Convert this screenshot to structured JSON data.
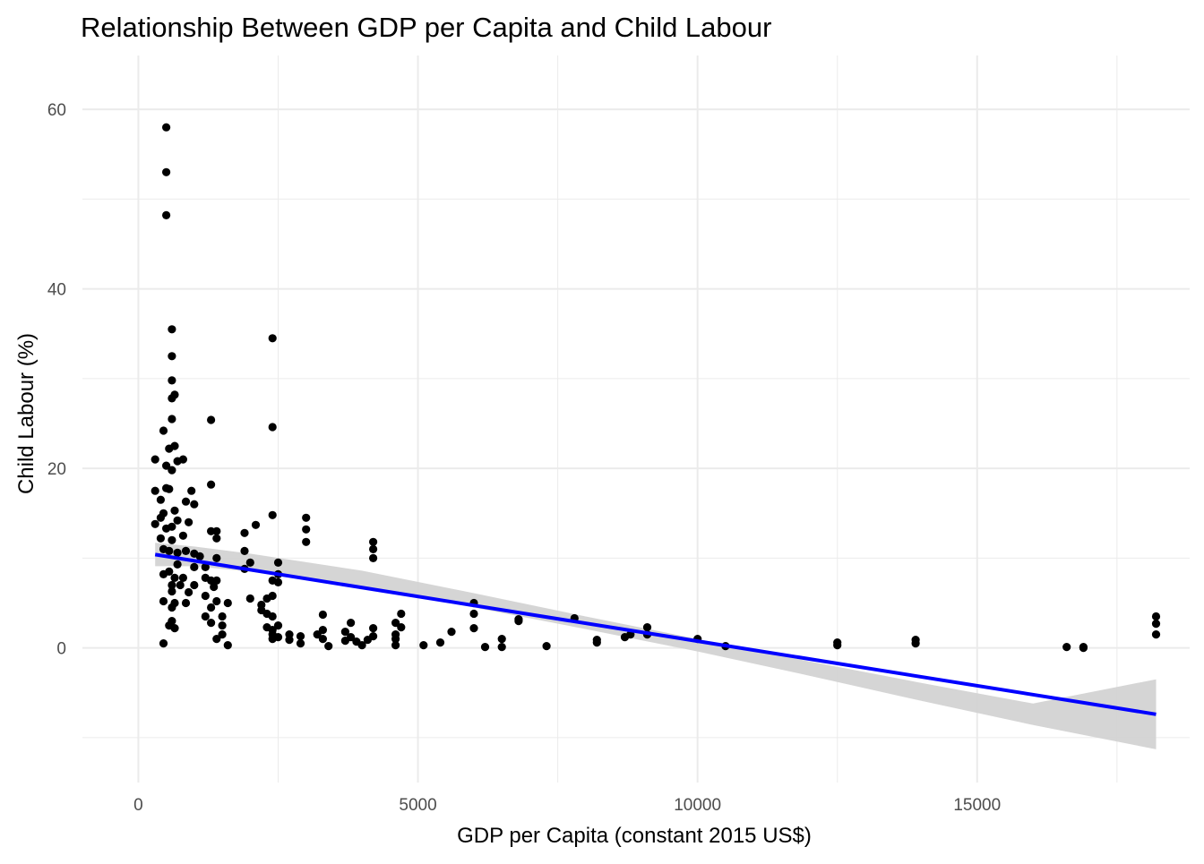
{
  "chart_data": {
    "type": "scatter",
    "title": "Relationship Between GDP per Capita and Child Labour",
    "xlabel": "GDP per Capita (constant 2015 US$)",
    "ylabel": "Child Labour (%)",
    "xlim": [
      -1000,
      18800
    ],
    "ylim": [
      -15,
      66
    ],
    "x_ticks": [
      0,
      5000,
      10000,
      15000
    ],
    "y_ticks": [
      0,
      20,
      40,
      60
    ],
    "grid": true,
    "legend": "none",
    "colors": {
      "points": "#000000",
      "trend_line": "#0000ff",
      "confidence_band": "#d3d3d3",
      "grid": "#ebebeb",
      "text": "#000000",
      "tick_text": "#4d4d4d"
    },
    "series": [
      {
        "type": "points",
        "points": [
          [
            500,
            58.0
          ],
          [
            500,
            53.0
          ],
          [
            500,
            48.2
          ],
          [
            600,
            35.5
          ],
          [
            600,
            32.5
          ],
          [
            600,
            29.8
          ],
          [
            600,
            27.8
          ],
          [
            650,
            28.2
          ],
          [
            600,
            25.5
          ],
          [
            2400,
            34.5
          ],
          [
            1300,
            25.4
          ],
          [
            2400,
            24.6
          ],
          [
            450,
            24.2
          ],
          [
            300,
            21.0
          ],
          [
            650,
            22.5
          ],
          [
            550,
            22.2
          ],
          [
            800,
            21.0
          ],
          [
            500,
            20.3
          ],
          [
            700,
            20.8
          ],
          [
            600,
            19.8
          ],
          [
            300,
            17.5
          ],
          [
            500,
            17.8
          ],
          [
            550,
            17.7
          ],
          [
            400,
            16.5
          ],
          [
            950,
            17.5
          ],
          [
            850,
            16.3
          ],
          [
            1000,
            16.0
          ],
          [
            450,
            15.0
          ],
          [
            650,
            15.3
          ],
          [
            400,
            14.5
          ],
          [
            300,
            13.8
          ],
          [
            900,
            14.0
          ],
          [
            700,
            14.2
          ],
          [
            500,
            13.3
          ],
          [
            600,
            13.5
          ],
          [
            1300,
            18.2
          ],
          [
            2400,
            14.8
          ],
          [
            3000,
            14.5
          ],
          [
            3000,
            13.2
          ],
          [
            2100,
            13.7
          ],
          [
            1900,
            12.8
          ],
          [
            1300,
            13.0
          ],
          [
            1400,
            13.0
          ],
          [
            1400,
            12.2
          ],
          [
            3000,
            11.8
          ],
          [
            4200,
            11.8
          ],
          [
            4200,
            11.0
          ],
          [
            4200,
            10.0
          ],
          [
            1900,
            10.8
          ],
          [
            800,
            12.5
          ],
          [
            600,
            12.0
          ],
          [
            400,
            12.2
          ],
          [
            450,
            11.0
          ],
          [
            550,
            10.8
          ],
          [
            700,
            10.6
          ],
          [
            850,
            10.8
          ],
          [
            1000,
            10.5
          ],
          [
            1100,
            10.2
          ],
          [
            1400,
            10.0
          ],
          [
            2000,
            9.5
          ],
          [
            2500,
            9.5
          ],
          [
            700,
            9.3
          ],
          [
            1000,
            9.0
          ],
          [
            1200,
            9.0
          ],
          [
            1900,
            8.8
          ],
          [
            2500,
            8.2
          ],
          [
            550,
            8.5
          ],
          [
            450,
            8.2
          ],
          [
            650,
            7.8
          ],
          [
            800,
            7.8
          ],
          [
            1200,
            7.8
          ],
          [
            1400,
            7.5
          ],
          [
            2400,
            7.5
          ],
          [
            2500,
            7.3
          ],
          [
            600,
            7.0
          ],
          [
            750,
            7.0
          ],
          [
            1000,
            7.0
          ],
          [
            1300,
            7.5
          ],
          [
            1350,
            6.8
          ],
          [
            600,
            6.3
          ],
          [
            900,
            6.2
          ],
          [
            1200,
            5.8
          ],
          [
            2400,
            5.8
          ],
          [
            2300,
            5.5
          ],
          [
            2000,
            5.5
          ],
          [
            450,
            5.2
          ],
          [
            650,
            5.0
          ],
          [
            850,
            5.0
          ],
          [
            1400,
            5.2
          ],
          [
            1600,
            5.0
          ],
          [
            2200,
            4.8
          ],
          [
            600,
            4.5
          ],
          [
            1300,
            4.5
          ],
          [
            2200,
            4.2
          ],
          [
            2300,
            3.8
          ],
          [
            1200,
            3.5
          ],
          [
            1500,
            3.5
          ],
          [
            2400,
            3.5
          ],
          [
            3300,
            3.7
          ],
          [
            4700,
            3.8
          ],
          [
            6000,
            5.0
          ],
          [
            6000,
            3.8
          ],
          [
            600,
            3.0
          ],
          [
            550,
            2.5
          ],
          [
            650,
            2.2
          ],
          [
            1300,
            2.8
          ],
          [
            1500,
            2.5
          ],
          [
            2300,
            2.3
          ],
          [
            2500,
            2.5
          ],
          [
            3800,
            2.8
          ],
          [
            4600,
            2.8
          ],
          [
            7800,
            3.3
          ],
          [
            6800,
            3.0
          ],
          [
            9100,
            2.3
          ],
          [
            4700,
            2.3
          ],
          [
            2400,
            2.0
          ],
          [
            3300,
            2.0
          ],
          [
            3700,
            1.8
          ],
          [
            4200,
            2.2
          ],
          [
            5600,
            1.8
          ],
          [
            6000,
            2.2
          ],
          [
            6800,
            3.2
          ],
          [
            2400,
            1.5
          ],
          [
            2700,
            1.5
          ],
          [
            3200,
            1.5
          ],
          [
            3800,
            1.2
          ],
          [
            4200,
            1.3
          ],
          [
            4600,
            1.5
          ],
          [
            8800,
            1.5
          ],
          [
            9100,
            1.5
          ],
          [
            8700,
            1.2
          ],
          [
            10000,
            1.0
          ],
          [
            1500,
            1.5
          ],
          [
            2500,
            1.2
          ],
          [
            2900,
            1.3
          ],
          [
            3300,
            1.0
          ],
          [
            3700,
            0.8
          ],
          [
            3900,
            0.7
          ],
          [
            4100,
            0.9
          ],
          [
            4600,
            1.0
          ],
          [
            6500,
            1.0
          ],
          [
            8200,
            0.9
          ],
          [
            1400,
            1.0
          ],
          [
            2400,
            1.0
          ],
          [
            2900,
            0.5
          ],
          [
            3400,
            0.2
          ],
          [
            4000,
            0.3
          ],
          [
            4600,
            0.3
          ],
          [
            5100,
            0.3
          ],
          [
            5400,
            0.6
          ],
          [
            6200,
            0.1
          ],
          [
            6500,
            0.1
          ],
          [
            7300,
            0.2
          ],
          [
            8200,
            0.6
          ],
          [
            450,
            0.5
          ],
          [
            1600,
            0.3
          ],
          [
            2700,
            0.9
          ],
          [
            10500,
            0.2
          ],
          [
            12500,
            0.6
          ],
          [
            12500,
            0.3
          ],
          [
            13900,
            0.9
          ],
          [
            13900,
            0.5
          ],
          [
            16600,
            0.1
          ],
          [
            16900,
            0.1
          ],
          [
            16900,
            0.0
          ],
          [
            18200,
            3.5
          ],
          [
            18200,
            2.7
          ],
          [
            18200,
            1.5
          ]
        ]
      },
      {
        "type": "trend_line",
        "x": [
          300,
          18200
        ],
        "y": [
          10.4,
          -7.4
        ]
      },
      {
        "type": "confidence_band",
        "x": [
          300,
          1000,
          2000,
          4000,
          6000,
          8000,
          10000,
          12000,
          14000,
          16000,
          18200
        ],
        "lower": [
          9.1,
          9.1,
          8.5,
          6.8,
          4.5,
          2.1,
          -0.4,
          -3.1,
          -5.9,
          -8.6,
          -11.3
        ],
        "upper": [
          11.7,
          11.3,
          10.5,
          8.6,
          6.1,
          3.5,
          1.0,
          -1.5,
          -3.9,
          -6.2,
          -3.5
        ]
      }
    ]
  }
}
